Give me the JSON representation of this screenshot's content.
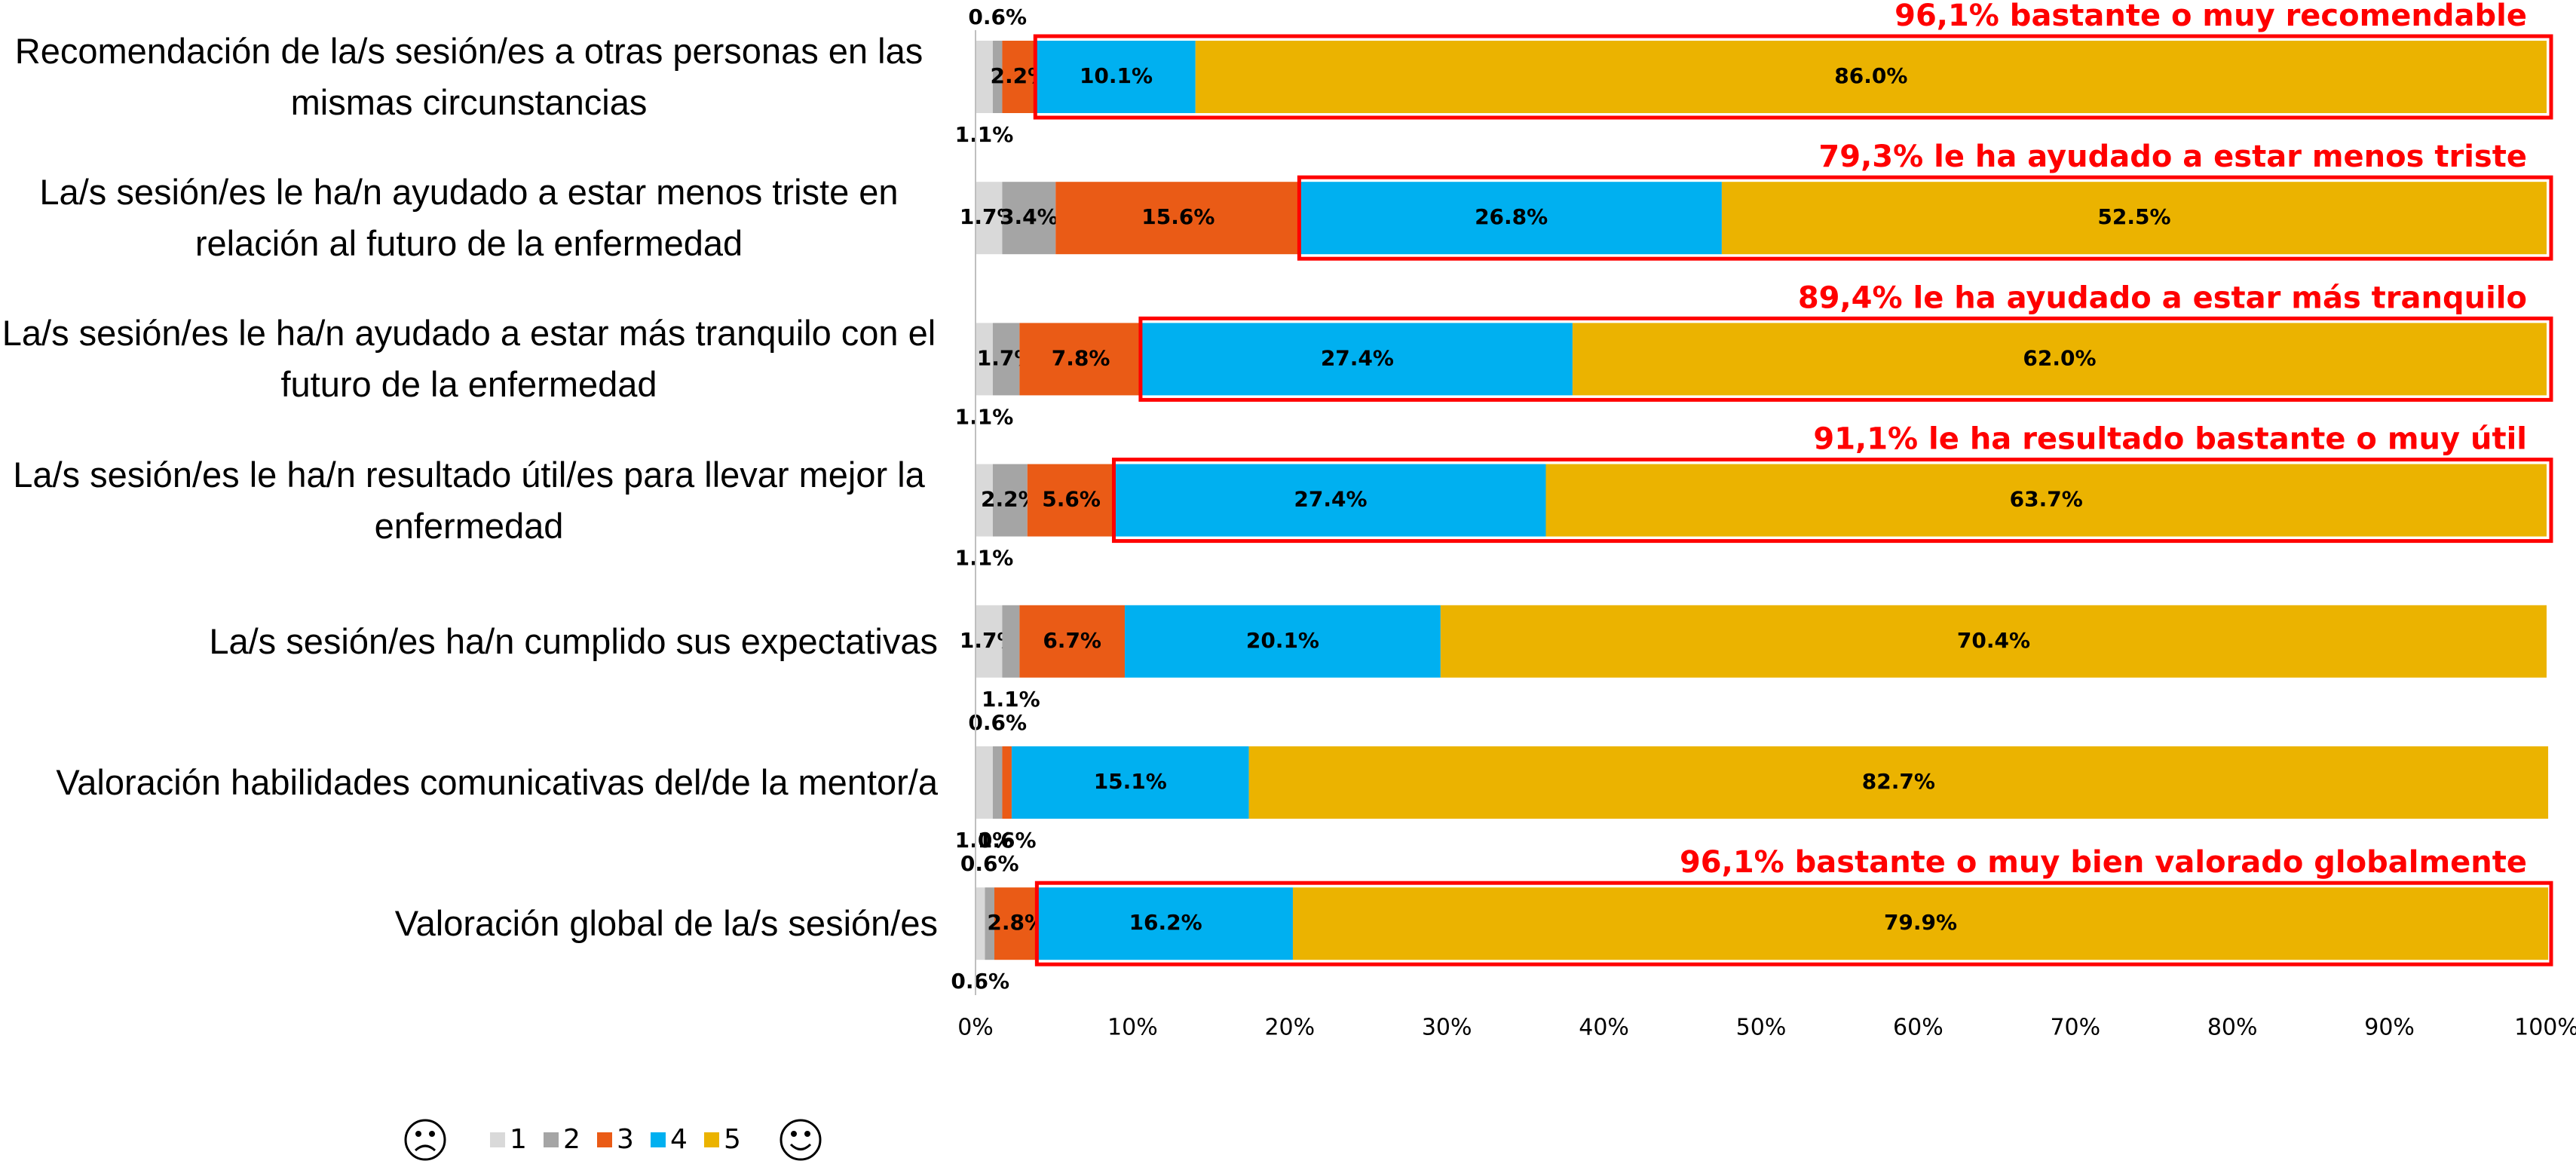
{
  "chart_data": {
    "type": "stacked-bar-horizontal",
    "categories": [
      "Recomendación de la/s sesión/es a otras personas en las mismas circunstancias",
      "La/s sesión/es le ha/n ayudado a estar menos triste en relación al futuro de la enfermedad",
      "La/s sesión/es le ha/n ayudado a estar más tranquilo con el futuro de la enfermedad",
      "La/s sesión/es le ha/n resultado útil/es para llevar mejor la enfermedad",
      "La/s sesión/es ha/n cumplido sus expectativas",
      "Valoración habilidades comunicativas del/de la mentor/a",
      "Valoración global de la/s sesión/es"
    ],
    "series": [
      {
        "name": "1",
        "color": "#d9d9d9",
        "values": [
          1.1,
          1.7,
          1.1,
          1.1,
          1.7,
          1.1,
          0.6
        ],
        "value_labels": [
          "1.1%",
          "1.7%",
          "1.1%",
          "1.1%",
          "1.7%",
          "1.1%",
          "0.6%"
        ]
      },
      {
        "name": "2",
        "color": "#a5a5a5",
        "values": [
          0.6,
          3.4,
          1.7,
          2.2,
          1.1,
          0.6,
          0.6
        ],
        "value_labels": [
          "0.6%",
          "3.4%",
          "1.7%",
          "2.2%",
          "1.1%",
          "0.6%",
          "0.6%"
        ]
      },
      {
        "name": "3",
        "color": "#ea5b16",
        "values": [
          2.2,
          15.6,
          7.8,
          5.6,
          6.7,
          0.6,
          2.8
        ],
        "value_labels": [
          "2.2%",
          "15.6%",
          "7.8%",
          "5.6%",
          "6.7%",
          "0.6%",
          "2.8%"
        ]
      },
      {
        "name": "4",
        "color": "#00b0f0",
        "values": [
          10.1,
          26.8,
          27.4,
          27.4,
          20.1,
          15.1,
          16.2
        ],
        "value_labels": [
          "10.1%",
          "26.8%",
          "27.4%",
          "27.4%",
          "20.1%",
          "15.1%",
          "16.2%"
        ]
      },
      {
        "name": "5",
        "color": "#ebb300",
        "values": [
          86.0,
          52.5,
          62.0,
          63.7,
          70.4,
          82.7,
          79.9
        ],
        "value_labels": [
          "86.0%",
          "52.5%",
          "62.0%",
          "63.7%",
          "70.4%",
          "82.7%",
          "79.9%"
        ]
      }
    ],
    "annotations": [
      "96,1% bastante o muy recomendable",
      "79,3% le ha ayudado a estar menos triste",
      "89,4% le ha ayudado a estar más tranquilo",
      "91,1% le ha resultado bastante o muy útil",
      null,
      null,
      "96,1% bastante o muy bien valorado globalmente"
    ],
    "annotation_color": "#ff0000",
    "xlim": [
      0,
      100
    ],
    "xticks": [
      {
        "value": 0,
        "label": "0%"
      },
      {
        "value": 10,
        "label": "10%"
      },
      {
        "value": 20,
        "label": "20%"
      },
      {
        "value": 30,
        "label": "30%"
      },
      {
        "value": 40,
        "label": "40%"
      },
      {
        "value": 50,
        "label": "50%"
      },
      {
        "value": 60,
        "label": "60%"
      },
      {
        "value": 70,
        "label": "70%"
      },
      {
        "value": 80,
        "label": "80%"
      },
      {
        "value": 90,
        "label": "90%"
      },
      {
        "value": 100,
        "label": "100%"
      }
    ],
    "grid": false,
    "legend": "bottom-left"
  }
}
